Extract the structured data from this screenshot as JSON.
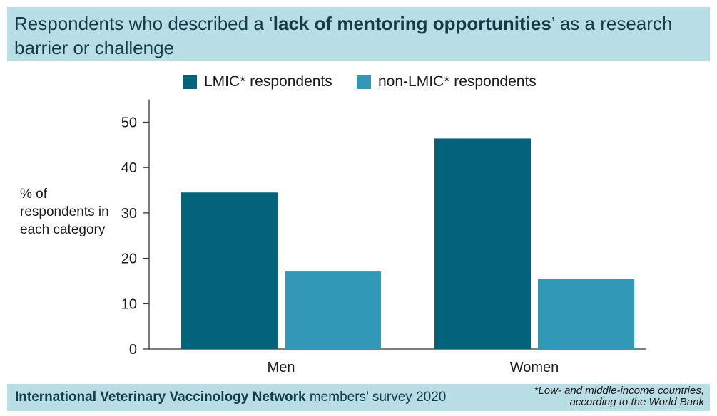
{
  "header": {
    "title_prefix": "Respondents who described a ‘",
    "title_bold": "lack of mentoring opportunities",
    "title_suffix": "’ as a research barrier or challenge"
  },
  "footer": {
    "source_bold": "International Veterinary Vaccinology Network",
    "source_rest": " members’ survey 2020",
    "footnote_line1": "*Low- and middle-income countries,",
    "footnote_line2": "according to the World Bank"
  },
  "chart_data": {
    "type": "bar",
    "categories": [
      "Men",
      "Women"
    ],
    "series": [
      {
        "name": "LMIC* respondents",
        "values": [
          34.5,
          46.4
        ],
        "color": "#02637a"
      },
      {
        "name": "non-LMIC* respondents",
        "values": [
          17.1,
          15.5
        ],
        "color": "#3199b7"
      }
    ],
    "ylabel": "% of respondents in each category",
    "xlabel": "",
    "ylim": [
      0,
      55
    ],
    "yticks": [
      0,
      10,
      20,
      30,
      40,
      50
    ],
    "legend": "top",
    "grid": false
  }
}
